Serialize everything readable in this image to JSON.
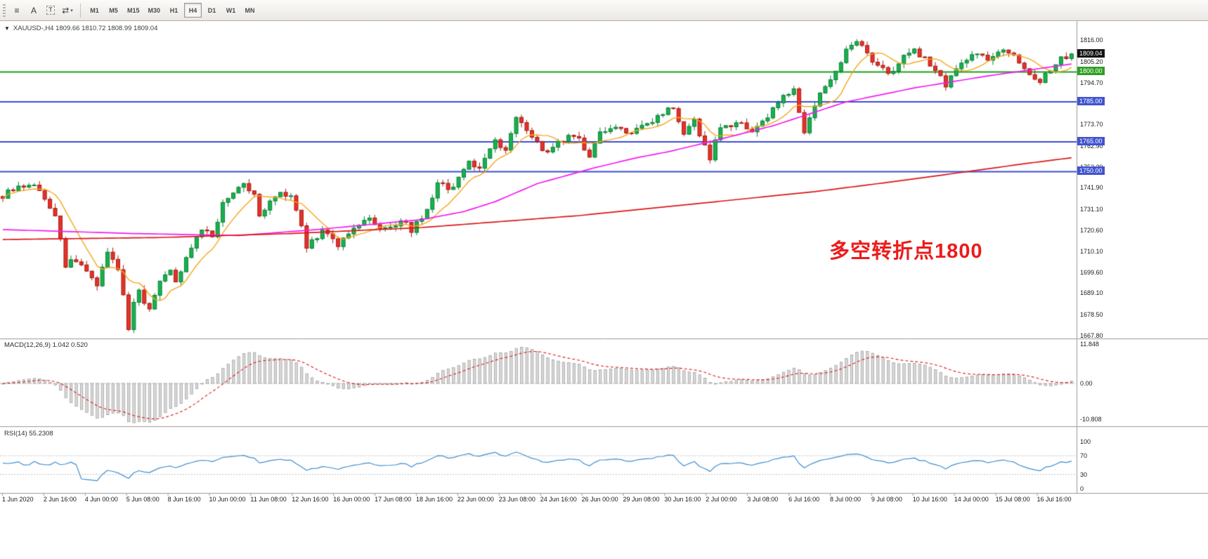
{
  "toolbar": {
    "dropdown_caret": "▾",
    "tool_icons": [
      {
        "name": "charts-list-icon",
        "glyph": "≡"
      },
      {
        "name": "annotations-icon",
        "glyph": "A"
      },
      {
        "name": "text-label-icon",
        "glyph": "T"
      },
      {
        "name": "auto-arrange-icon",
        "glyph": "⇄"
      }
    ],
    "timeframes": [
      {
        "label": "M1",
        "active": false
      },
      {
        "label": "M5",
        "active": false
      },
      {
        "label": "M15",
        "active": false
      },
      {
        "label": "M30",
        "active": false
      },
      {
        "label": "H1",
        "active": false
      },
      {
        "label": "H4",
        "active": true
      },
      {
        "label": "D1",
        "active": false
      },
      {
        "label": "W1",
        "active": false
      },
      {
        "label": "MN",
        "active": false
      }
    ]
  },
  "chart": {
    "collapse_glyph": "▼",
    "symbol_info": "XAUUSD-,H4  1809.66 1810.72 1808.99 1809.04",
    "annotation": "多空转折点1800",
    "macd_label": "MACD(12,26,9) 1.042 0.520",
    "rsi_label": "RSI(14) 55.2308",
    "price_axis_labels": [
      "1816.00",
      "1805.20",
      "1794.70",
      "1784.20",
      "1773.70",
      "1762.90",
      "1752.30",
      "1741.90",
      "1731.10",
      "1720.60",
      "1710.10",
      "1699.60",
      "1689.10",
      "1678.50",
      "1667.80"
    ],
    "price_badges": [
      {
        "name": "current-price-badge",
        "label": "1809.04",
        "price": 1809.04,
        "bg": "#111111"
      },
      {
        "name": "hline-1800-badge",
        "label": "1800.00",
        "price": 1800.0,
        "bg": "#2f9e23"
      },
      {
        "name": "hline-1785-badge",
        "label": "1785.00",
        "price": 1785.0,
        "bg": "#4053cf"
      },
      {
        "name": "hline-1765-badge",
        "label": "1765.00",
        "price": 1765.0,
        "bg": "#4053cf"
      },
      {
        "name": "hline-1750-badge",
        "label": "1750.00",
        "price": 1750.0,
        "bg": "#4053cf"
      }
    ]
  },
  "chart_data": {
    "type": "candlestick",
    "symbol": "XAUUSD",
    "timeframe": "H4",
    "bars": 205,
    "ohlc_last": {
      "open": 1809.66,
      "high": 1810.72,
      "low": 1808.99,
      "close": 1809.04
    },
    "current_close": 1809.04,
    "price_range": {
      "min": 1667.8,
      "max": 1816.0
    },
    "hlines": [
      {
        "price": 1800.0,
        "color": "#1fa01f"
      },
      {
        "price": 1785.0,
        "color": "#3a4ed8"
      },
      {
        "price": 1765.0,
        "color": "#3a4ed8"
      },
      {
        "price": 1750.0,
        "color": "#3a4ed8"
      }
    ],
    "price_path": [
      [
        0,
        1738
      ],
      [
        3,
        1742
      ],
      [
        6,
        1744
      ],
      [
        8,
        1736
      ],
      [
        10,
        1727
      ],
      [
        12,
        1703
      ],
      [
        14,
        1706
      ],
      [
        16,
        1699
      ],
      [
        18,
        1694
      ],
      [
        20,
        1711
      ],
      [
        22,
        1701
      ],
      [
        23,
        1687
      ],
      [
        24,
        1671
      ],
      [
        25,
        1683
      ],
      [
        26,
        1690
      ],
      [
        28,
        1680
      ],
      [
        30,
        1694
      ],
      [
        32,
        1700
      ],
      [
        33,
        1694
      ],
      [
        35,
        1706
      ],
      [
        36,
        1713
      ],
      [
        38,
        1722
      ],
      [
        40,
        1716
      ],
      [
        42,
        1736
      ],
      [
        44,
        1740
      ],
      [
        46,
        1744
      ],
      [
        48,
        1738
      ],
      [
        49,
        1729
      ],
      [
        51,
        1734
      ],
      [
        53,
        1741
      ],
      [
        55,
        1737
      ],
      [
        56,
        1731
      ],
      [
        58,
        1712
      ],
      [
        60,
        1717
      ],
      [
        61,
        1721
      ],
      [
        63,
        1717
      ],
      [
        64,
        1714
      ],
      [
        66,
        1720
      ],
      [
        68,
        1724
      ],
      [
        70,
        1726
      ],
      [
        72,
        1722
      ],
      [
        74,
        1721
      ],
      [
        76,
        1727
      ],
      [
        78,
        1721
      ],
      [
        80,
        1727
      ],
      [
        81,
        1731
      ],
      [
        83,
        1745
      ],
      [
        85,
        1742
      ],
      [
        86,
        1741
      ],
      [
        88,
        1752
      ],
      [
        89,
        1755
      ],
      [
        91,
        1751
      ],
      [
        93,
        1760
      ],
      [
        94,
        1766
      ],
      [
        96,
        1761
      ],
      [
        98,
        1776
      ],
      [
        100,
        1772
      ],
      [
        101,
        1768
      ],
      [
        103,
        1761
      ],
      [
        104,
        1759
      ],
      [
        106,
        1764
      ],
      [
        108,
        1768
      ],
      [
        109,
        1769
      ],
      [
        111,
        1762
      ],
      [
        112,
        1757
      ],
      [
        114,
        1770
      ],
      [
        116,
        1771
      ],
      [
        117,
        1772
      ],
      [
        119,
        1770
      ],
      [
        120,
        1769
      ],
      [
        122,
        1774
      ],
      [
        124,
        1776
      ],
      [
        125,
        1778
      ],
      [
        127,
        1781
      ],
      [
        128,
        1783
      ],
      [
        129,
        1776
      ],
      [
        130,
        1769
      ],
      [
        132,
        1776
      ],
      [
        134,
        1763
      ],
      [
        135,
        1757
      ],
      [
        137,
        1772
      ],
      [
        139,
        1774
      ],
      [
        140,
        1775
      ],
      [
        142,
        1773
      ],
      [
        143,
        1771
      ],
      [
        145,
        1775
      ],
      [
        146,
        1777
      ],
      [
        148,
        1786
      ],
      [
        150,
        1789
      ],
      [
        151,
        1791
      ],
      [
        152,
        1780
      ],
      [
        153,
        1768
      ],
      [
        155,
        1783
      ],
      [
        156,
        1789
      ],
      [
        158,
        1796
      ],
      [
        160,
        1806
      ],
      [
        161,
        1811
      ],
      [
        163,
        1814
      ],
      [
        164,
        1813
      ],
      [
        166,
        1806
      ],
      [
        168,
        1801
      ],
      [
        169,
        1799
      ],
      [
        171,
        1804
      ],
      [
        172,
        1807
      ],
      [
        174,
        1811
      ],
      [
        176,
        1807
      ],
      [
        177,
        1804
      ],
      [
        179,
        1797
      ],
      [
        180,
        1794
      ],
      [
        182,
        1800
      ],
      [
        183,
        1804
      ],
      [
        185,
        1809
      ],
      [
        187,
        1807
      ],
      [
        188,
        1806
      ],
      [
        190,
        1809
      ],
      [
        191,
        1811
      ],
      [
        193,
        1808
      ],
      [
        195,
        1802
      ],
      [
        196,
        1799
      ],
      [
        198,
        1796
      ],
      [
        200,
        1802
      ],
      [
        201,
        1805
      ],
      [
        203,
        1808
      ],
      [
        204,
        1809
      ]
    ],
    "orange_ma_period": 8,
    "ma_magenta_path": [
      [
        0,
        1721
      ],
      [
        25,
        1719
      ],
      [
        45,
        1718
      ],
      [
        60,
        1721
      ],
      [
        72,
        1724
      ],
      [
        80,
        1726
      ],
      [
        88,
        1730
      ],
      [
        94,
        1735
      ],
      [
        102,
        1744
      ],
      [
        113,
        1752
      ],
      [
        121,
        1757
      ],
      [
        127,
        1760
      ],
      [
        135,
        1765
      ],
      [
        147,
        1773
      ],
      [
        161,
        1785
      ],
      [
        174,
        1792
      ],
      [
        188,
        1798
      ],
      [
        204,
        1804
      ]
    ],
    "ma_red_path": [
      [
        0,
        1716
      ],
      [
        30,
        1717
      ],
      [
        55,
        1719
      ],
      [
        80,
        1722
      ],
      [
        95,
        1725
      ],
      [
        110,
        1728
      ],
      [
        125,
        1732
      ],
      [
        140,
        1736
      ],
      [
        155,
        1740
      ],
      [
        170,
        1745
      ],
      [
        184,
        1750
      ],
      [
        195,
        1754
      ],
      [
        204,
        1757
      ]
    ],
    "macd": {
      "fast": 12,
      "slow": 26,
      "signal": 9,
      "value": 1.042,
      "signal_value": 0.52,
      "axis_labels": [
        "11.848",
        "0.00",
        "-10.808"
      ]
    },
    "rsi": {
      "period": 14,
      "value": 55.2308,
      "axis_labels": [
        "100",
        "70",
        "30",
        "0"
      ],
      "levels": [
        70,
        30
      ]
    },
    "time_labels": [
      "1 Jun 2020",
      "2 Jun 16:00",
      "4 Jun 00:00",
      "5 Jun 08:00",
      "8 Jun 16:00",
      "10 Jun 00:00",
      "11 Jun 08:00",
      "12 Jun 16:00",
      "16 Jun 00:00",
      "17 Jun 08:00",
      "18 Jun 16:00",
      "22 Jun 00:00",
      "23 Jun 08:00",
      "24 Jun 16:00",
      "26 Jun 00:00",
      "29 Jun 08:00",
      "30 Jun 16:00",
      "2 Jul 00:00",
      "3 Jul 08:00",
      "6 Jul 16:00",
      "8 Jul 00:00",
      "9 Jul 08:00",
      "10 Jul 16:00",
      "14 Jul 00:00",
      "15 Jul 08:00",
      "16 Jul 16:00"
    ]
  }
}
